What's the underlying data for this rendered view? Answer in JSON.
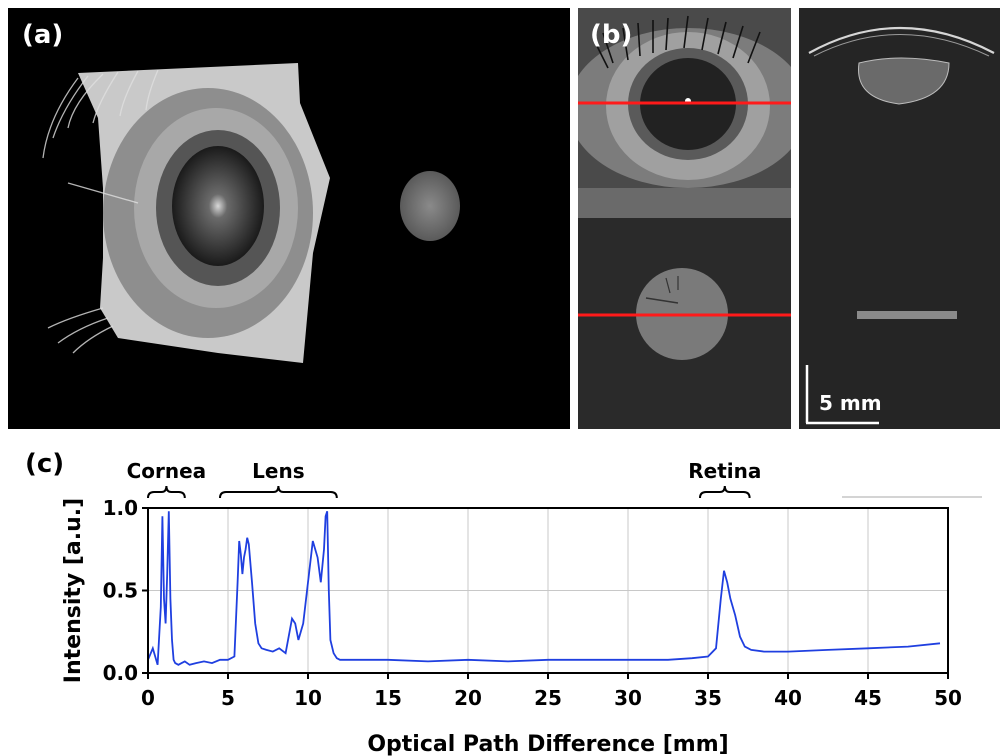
{
  "panels": {
    "a_label": "(a)",
    "b_label": "(b)",
    "c_label": "(c)",
    "scale_bar_label": "5 mm"
  },
  "colors": {
    "signal": "#1f3fe0",
    "marker_line": "#ff1a1a",
    "grid": "#c8c8c8"
  },
  "chart_data": {
    "type": "line",
    "xlabel": "Optical Path Difference [mm]",
    "ylabel": "Intensity [a.u.]",
    "xlim": [
      0,
      50
    ],
    "ylim": [
      0,
      1.0
    ],
    "xticks": [
      0,
      5,
      10,
      15,
      20,
      25,
      30,
      35,
      40,
      45,
      50
    ],
    "yticks": [
      0.0,
      0.5,
      1.0
    ],
    "ytick_labels": [
      "0.0",
      "0.5",
      "1.0"
    ],
    "grid": true,
    "annotations": [
      {
        "label": "Cornea",
        "x_start": 0.0,
        "x_end": 2.3
      },
      {
        "label": "Lens",
        "x_start": 4.5,
        "x_end": 11.8
      },
      {
        "label": "Retina",
        "x_start": 34.5,
        "x_end": 37.6
      }
    ],
    "series": [
      {
        "x": [
          0.0,
          0.3,
          0.6,
          0.8,
          0.9,
          1.0,
          1.1,
          1.2,
          1.3,
          1.4,
          1.5,
          1.6,
          1.7,
          1.9,
          2.1,
          2.3,
          2.6,
          3.0,
          3.5,
          4.0,
          4.5,
          5.0,
          5.4,
          5.6,
          5.7,
          5.8,
          5.9,
          6.0,
          6.1,
          6.2,
          6.3,
          6.5,
          6.7,
          6.9,
          7.1,
          7.4,
          7.8,
          8.2,
          8.6,
          9.0,
          9.2,
          9.4,
          9.7,
          10.0,
          10.3,
          10.6,
          10.8,
          11.0,
          11.1,
          11.2,
          11.3,
          11.4,
          11.6,
          11.8,
          12.0,
          13.0,
          15.0,
          17.5,
          20.0,
          22.5,
          25.0,
          27.5,
          30.0,
          32.5,
          34.0,
          35.0,
          35.5,
          35.8,
          36.0,
          36.2,
          36.4,
          36.7,
          37.0,
          37.3,
          37.7,
          38.5,
          40.0,
          42.5,
          45.0,
          47.5,
          49.5
        ],
        "values": [
          0.08,
          0.15,
          0.05,
          0.4,
          0.95,
          0.45,
          0.3,
          0.6,
          0.98,
          0.45,
          0.2,
          0.08,
          0.06,
          0.05,
          0.06,
          0.07,
          0.05,
          0.06,
          0.07,
          0.06,
          0.08,
          0.08,
          0.1,
          0.55,
          0.8,
          0.72,
          0.6,
          0.7,
          0.75,
          0.82,
          0.78,
          0.55,
          0.3,
          0.18,
          0.15,
          0.14,
          0.13,
          0.15,
          0.12,
          0.33,
          0.3,
          0.2,
          0.3,
          0.55,
          0.8,
          0.7,
          0.55,
          0.75,
          0.95,
          0.98,
          0.5,
          0.2,
          0.12,
          0.09,
          0.08,
          0.08,
          0.08,
          0.07,
          0.08,
          0.07,
          0.08,
          0.08,
          0.08,
          0.08,
          0.09,
          0.1,
          0.15,
          0.45,
          0.62,
          0.55,
          0.45,
          0.35,
          0.22,
          0.16,
          0.14,
          0.13,
          0.13,
          0.14,
          0.15,
          0.16,
          0.18
        ]
      }
    ]
  }
}
